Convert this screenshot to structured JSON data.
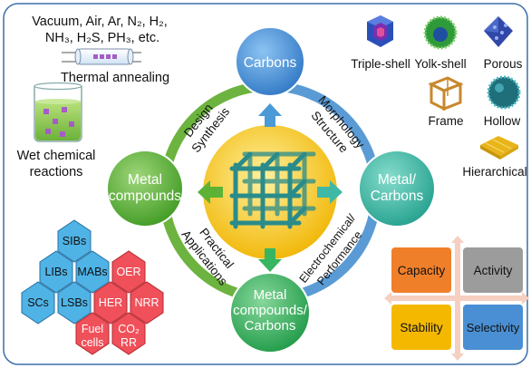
{
  "colors": {
    "frame": "#3d6fa8",
    "ring_green": "#6cb33f",
    "ring_blue": "#5a9bd5",
    "carbons": "#4b8fd4",
    "metal_compounds": "#5db236",
    "metal_carbons": "#3fb8a6",
    "mc_carbons": "#37b560",
    "center": "#f5c518",
    "capacity": "#f07f2a",
    "activity": "#9c9c9c",
    "stability": "#f5b800",
    "selectivity": "#4a8fd4",
    "hex_blue": "#4fb3e6",
    "hex_red": "#f0505a"
  },
  "top_left": {
    "gases_line1": "Vacuum, Air, Ar, N₂, H₂,",
    "gases_line2": "NH₃, H₂S, PH₃, etc.",
    "thermal_label": "Thermal annealing",
    "wet_line1": "Wet chemical",
    "wet_line2": "reactions"
  },
  "nodes": {
    "carbons": "Carbons",
    "metal_compounds_l1": "Metal",
    "metal_compounds_l2": "compounds",
    "metal_carbons_l1": "Metal/",
    "metal_carbons_l2": "Carbons",
    "mc_carbons_l1": "Metal",
    "mc_carbons_l2": "compounds/",
    "mc_carbons_l3": "Carbons"
  },
  "ring_labels": {
    "design": "Design",
    "synthesis": "Synthesis",
    "morphology": "Morphology",
    "structure": "Structure",
    "practical": "Practical",
    "applications": "Applications",
    "electrochemical": "Electrochemical/",
    "performance": "Performance"
  },
  "morphologies": {
    "triple_shell": "Triple-shell",
    "yolk_shell": "Yolk-shell",
    "porous": "Porous",
    "frame": "Frame",
    "hollow": "Hollow",
    "hierarchical": "Hierarchical"
  },
  "applications": {
    "sibs": "SIBs",
    "libs": "LIBs",
    "mabs": "MABs",
    "oer": "OER",
    "scs": "SCs",
    "lsbs": "LSBs",
    "her": "HER",
    "nrr": "NRR",
    "fuel_l1": "Fuel",
    "fuel_l2": "cells",
    "co2_l1": "CO₂",
    "co2_l2": "RR"
  },
  "performance": {
    "capacity": "Capacity",
    "activity": "Activity",
    "stability": "Stability",
    "selectivity": "Selectivity"
  }
}
